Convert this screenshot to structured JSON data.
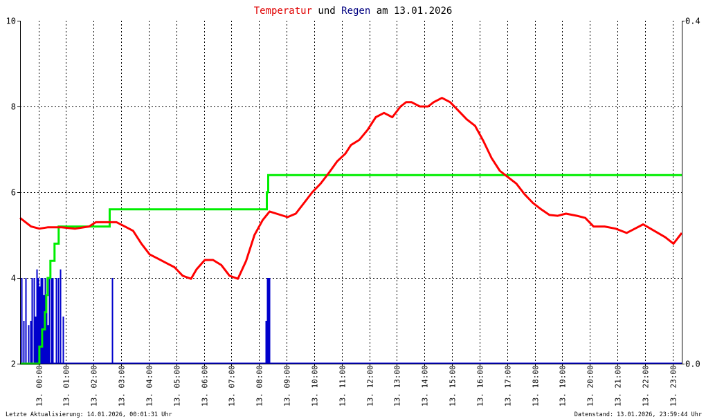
{
  "chart_data": {
    "type": "line",
    "title": {
      "parts": [
        {
          "text": "Temperatur",
          "color": "#e00000"
        },
        {
          "text": " und ",
          "color": "#000000"
        },
        {
          "text": "Regen",
          "color": "#000080"
        },
        {
          "text": " am 13.01.2026",
          "color": "#000000"
        }
      ]
    },
    "x_ticks": [
      "13. 00:00",
      "13. 01:00",
      "13. 02:00",
      "13. 03:00",
      "13. 04:00",
      "13. 05:00",
      "13. 06:00",
      "13. 07:00",
      "13. 08:00",
      "13. 09:00",
      "13. 10:00",
      "13. 11:00",
      "13. 12:00",
      "13. 13:00",
      "13. 14:00",
      "13. 15:00",
      "13. 16:00",
      "13. 17:00",
      "13. 18:00",
      "13. 19:00",
      "13. 20:00",
      "13. 21:00",
      "13. 22:00",
      "13. 23:00"
    ],
    "x_range_hours": [
      0,
      24
    ],
    "y_left": {
      "range": [
        2,
        10
      ],
      "ticks": [
        "2",
        "4",
        "6",
        "8",
        "10"
      ]
    },
    "y_right": {
      "range": [
        0,
        0.4
      ],
      "ticks": [
        "0.0",
        "0.4"
      ]
    },
    "grid": true,
    "colors": {
      "temperature": "#ff0000",
      "rain_sum": "#00ee00",
      "rain_rate": "#0000cc"
    },
    "temperature": {
      "axis": "left",
      "points": [
        [
          0,
          5.4
        ],
        [
          0.2,
          5.3
        ],
        [
          0.4,
          5.2
        ],
        [
          0.7,
          5.15
        ],
        [
          1.0,
          5.18
        ],
        [
          1.5,
          5.18
        ],
        [
          2.0,
          5.15
        ],
        [
          2.5,
          5.2
        ],
        [
          2.75,
          5.3
        ],
        [
          3.0,
          5.3
        ],
        [
          3.2,
          5.3
        ],
        [
          3.5,
          5.3
        ],
        [
          3.8,
          5.2
        ],
        [
          4.1,
          5.1
        ],
        [
          4.4,
          4.8
        ],
        [
          4.7,
          4.55
        ],
        [
          5.0,
          4.45
        ],
        [
          5.3,
          4.35
        ],
        [
          5.6,
          4.25
        ],
        [
          5.9,
          4.05
        ],
        [
          6.2,
          3.98
        ],
        [
          6.4,
          4.2
        ],
        [
          6.7,
          4.42
        ],
        [
          7.0,
          4.42
        ],
        [
          7.3,
          4.3
        ],
        [
          7.6,
          4.05
        ],
        [
          7.9,
          3.98
        ],
        [
          8.2,
          4.4
        ],
        [
          8.5,
          5.0
        ],
        [
          8.8,
          5.35
        ],
        [
          9.05,
          5.55
        ],
        [
          9.3,
          5.5
        ],
        [
          9.7,
          5.42
        ],
        [
          10.0,
          5.5
        ],
        [
          10.3,
          5.75
        ],
        [
          10.6,
          6.0
        ],
        [
          10.9,
          6.2
        ],
        [
          11.2,
          6.45
        ],
        [
          11.5,
          6.72
        ],
        [
          11.8,
          6.9
        ],
        [
          12.0,
          7.1
        ],
        [
          12.3,
          7.22
        ],
        [
          12.6,
          7.45
        ],
        [
          12.9,
          7.75
        ],
        [
          13.2,
          7.85
        ],
        [
          13.5,
          7.75
        ],
        [
          13.8,
          8.0
        ],
        [
          14.0,
          8.1
        ],
        [
          14.2,
          8.1
        ],
        [
          14.5,
          8.0
        ],
        [
          14.8,
          8.0
        ],
        [
          15.0,
          8.1
        ],
        [
          15.3,
          8.2
        ],
        [
          15.6,
          8.1
        ],
        [
          15.9,
          7.9
        ],
        [
          16.2,
          7.7
        ],
        [
          16.5,
          7.55
        ],
        [
          16.8,
          7.2
        ],
        [
          17.1,
          6.8
        ],
        [
          17.4,
          6.5
        ],
        [
          17.7,
          6.35
        ],
        [
          18.0,
          6.2
        ],
        [
          18.3,
          5.95
        ],
        [
          18.6,
          5.75
        ],
        [
          18.9,
          5.6
        ],
        [
          19.2,
          5.47
        ],
        [
          19.5,
          5.45
        ],
        [
          19.8,
          5.5
        ],
        [
          20.2,
          5.45
        ],
        [
          20.5,
          5.4
        ],
        [
          20.8,
          5.2
        ],
        [
          21.2,
          5.2
        ],
        [
          21.6,
          5.15
        ],
        [
          22.0,
          5.05
        ],
        [
          22.3,
          5.15
        ],
        [
          22.6,
          5.25
        ],
        [
          23.0,
          5.1
        ],
        [
          23.4,
          4.95
        ],
        [
          23.7,
          4.8
        ],
        [
          24.0,
          5.05
        ]
      ]
    },
    "rain_sum": {
      "axis": "right",
      "points": [
        [
          0,
          0
        ],
        [
          0.65,
          0
        ],
        [
          0.7,
          0.02
        ],
        [
          0.8,
          0.04
        ],
        [
          0.9,
          0.06
        ],
        [
          0.95,
          0.08
        ],
        [
          1.0,
          0.1
        ],
        [
          1.1,
          0.12
        ],
        [
          1.25,
          0.14
        ],
        [
          1.4,
          0.16
        ],
        [
          1.6,
          0.16
        ],
        [
          3.2,
          0.16
        ],
        [
          3.25,
          0.18
        ],
        [
          8.9,
          0.18
        ],
        [
          8.95,
          0.2
        ],
        [
          9.0,
          0.22
        ],
        [
          24,
          0.22
        ]
      ]
    },
    "rain_rate": {
      "axis": "left",
      "bars": [
        [
          0.05,
          4.0
        ],
        [
          0.12,
          3.0
        ],
        [
          0.2,
          4.0
        ],
        [
          0.3,
          2.9
        ],
        [
          0.38,
          3.0
        ],
        [
          0.42,
          4.0
        ],
        [
          0.5,
          4.0
        ],
        [
          0.55,
          3.1
        ],
        [
          0.6,
          4.2
        ],
        [
          0.65,
          4.0
        ],
        [
          0.7,
          3.8
        ],
        [
          0.75,
          4.0
        ],
        [
          0.8,
          4.0
        ],
        [
          0.85,
          3.6
        ],
        [
          0.9,
          4.0
        ],
        [
          0.95,
          3.6
        ],
        [
          1.0,
          2.9
        ],
        [
          1.05,
          4.0
        ],
        [
          1.12,
          4.0
        ],
        [
          1.18,
          4.0
        ],
        [
          1.3,
          4.0
        ],
        [
          1.38,
          4.0
        ],
        [
          1.45,
          4.2
        ],
        [
          1.55,
          3.1
        ],
        [
          3.33,
          4.0
        ],
        [
          8.9,
          3.0
        ],
        [
          8.95,
          4.0
        ],
        [
          9.0,
          4.0
        ],
        [
          9.05,
          4.0
        ]
      ]
    },
    "footer_left": "Letzte Aktualisierung: 14.01.2026, 00:01:31 Uhr",
    "footer_right": "Datenstand: 13.01.2026, 23:59:44 Uhr"
  }
}
